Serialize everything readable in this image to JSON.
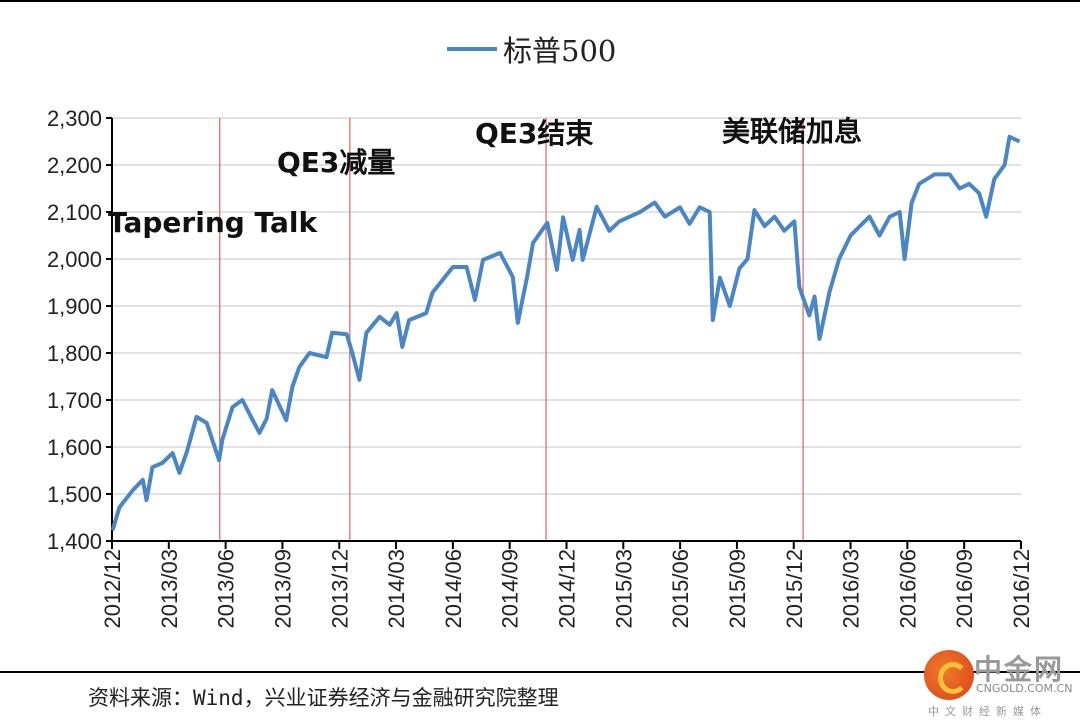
{
  "chart_data": {
    "type": "line",
    "title": "",
    "xlabel": "",
    "ylabel": "",
    "ylim": [
      1400,
      2300
    ],
    "yticks": [
      "1,400",
      "1,500",
      "1,600",
      "1,700",
      "1,800",
      "1,900",
      "2,000",
      "2,100",
      "2,200",
      "2,300"
    ],
    "ytick_values": [
      1400,
      1500,
      1600,
      1700,
      1800,
      1900,
      2000,
      2100,
      2200,
      2300
    ],
    "xlim": [
      "2012-12-01",
      "2016-12-01"
    ],
    "xticks": [
      "2012/12",
      "2013/03",
      "2013/06",
      "2013/09",
      "2013/12",
      "2014/03",
      "2014/06",
      "2014/09",
      "2014/12",
      "2015/03",
      "2015/06",
      "2015/09",
      "2015/12",
      "2016/03",
      "2016/06",
      "2016/09",
      "2016/12"
    ],
    "grid": true,
    "legend_position": "top-center",
    "series": [
      {
        "name": "标普500",
        "color": "#4a86c5",
        "points": [
          [
            "2012-12-02",
            1423
          ],
          [
            "2012-12-13",
            1472
          ],
          [
            "2013-01-04",
            1508
          ],
          [
            "2013-01-20",
            1530
          ],
          [
            "2013-01-26",
            1487
          ],
          [
            "2013-02-05",
            1557
          ],
          [
            "2013-02-21",
            1566
          ],
          [
            "2013-03-07",
            1587
          ],
          [
            "2013-03-18",
            1545
          ],
          [
            "2013-03-30",
            1590
          ],
          [
            "2013-04-15",
            1664
          ],
          [
            "2013-05-01",
            1651
          ],
          [
            "2013-05-10",
            1615
          ],
          [
            "2013-05-21",
            1572
          ],
          [
            "2013-05-26",
            1615
          ],
          [
            "2013-06-12",
            1685
          ],
          [
            "2013-06-28",
            1700
          ],
          [
            "2013-07-14",
            1657
          ],
          [
            "2013-07-25",
            1630
          ],
          [
            "2013-08-06",
            1660
          ],
          [
            "2013-08-15",
            1721
          ],
          [
            "2013-09-07",
            1657
          ],
          [
            "2013-09-17",
            1728
          ],
          [
            "2013-09-28",
            1770
          ],
          [
            "2013-10-14",
            1800
          ],
          [
            "2013-11-11",
            1791
          ],
          [
            "2013-11-20",
            1843
          ],
          [
            "2013-12-13",
            1840
          ],
          [
            "2013-12-22",
            1800
          ],
          [
            "2014-01-03",
            1743
          ],
          [
            "2014-01-14",
            1843
          ],
          [
            "2014-02-05",
            1877
          ],
          [
            "2014-02-21",
            1860
          ],
          [
            "2014-03-02",
            1885
          ],
          [
            "2014-03-11",
            1813
          ],
          [
            "2014-03-22",
            1870
          ],
          [
            "2014-04-19",
            1885
          ],
          [
            "2014-04-29",
            1928
          ],
          [
            "2014-06-01",
            1983
          ],
          [
            "2014-06-23",
            1983
          ],
          [
            "2014-07-06",
            1913
          ],
          [
            "2014-07-19",
            1998
          ],
          [
            "2014-08-16",
            2013
          ],
          [
            "2014-09-06",
            1962
          ],
          [
            "2014-09-14",
            1864
          ],
          [
            "2014-09-29",
            1962
          ],
          [
            "2014-10-08",
            2034
          ],
          [
            "2014-10-31",
            2077
          ],
          [
            "2014-11-16",
            1977
          ],
          [
            "2014-11-26",
            2089
          ],
          [
            "2014-12-11",
            1998
          ],
          [
            "2014-12-22",
            2062
          ],
          [
            "2014-12-27",
            1998
          ],
          [
            "2015-01-19",
            2111
          ],
          [
            "2015-02-09",
            2060
          ],
          [
            "2015-02-25",
            2080
          ],
          [
            "2015-03-28",
            2100
          ],
          [
            "2015-04-21",
            2120
          ],
          [
            "2015-05-07",
            2090
          ],
          [
            "2015-05-31",
            2110
          ],
          [
            "2015-06-16",
            2075
          ],
          [
            "2015-07-02",
            2110
          ],
          [
            "2015-07-18",
            2100
          ],
          [
            "2015-07-23",
            1870
          ],
          [
            "2015-08-04",
            1960
          ],
          [
            "2015-08-20",
            1900
          ],
          [
            "2015-09-05",
            1980
          ],
          [
            "2015-09-18",
            2000
          ],
          [
            "2015-09-29",
            2104
          ],
          [
            "2015-10-15",
            2070
          ],
          [
            "2015-10-31",
            2090
          ],
          [
            "2015-11-16",
            2060
          ],
          [
            "2015-12-02",
            2080
          ],
          [
            "2015-12-10",
            1940
          ],
          [
            "2015-12-26",
            1880
          ],
          [
            "2016-01-04",
            1920
          ],
          [
            "2016-01-12",
            1830
          ],
          [
            "2016-01-28",
            1930
          ],
          [
            "2016-02-13",
            2000
          ],
          [
            "2016-03-01",
            2050
          ],
          [
            "2016-03-16",
            2070
          ],
          [
            "2016-04-01",
            2090
          ],
          [
            "2016-04-17",
            2050
          ],
          [
            "2016-05-03",
            2090
          ],
          [
            "2016-05-19",
            2100
          ],
          [
            "2016-05-27",
            2000
          ],
          [
            "2016-06-08",
            2120
          ],
          [
            "2016-06-20",
            2160
          ],
          [
            "2016-07-14",
            2180
          ],
          [
            "2016-08-08",
            2180
          ],
          [
            "2016-08-24",
            2150
          ],
          [
            "2016-09-09",
            2160
          ],
          [
            "2016-09-25",
            2140
          ],
          [
            "2016-10-06",
            2090
          ],
          [
            "2016-10-19",
            2170
          ],
          [
            "2016-11-05",
            2200
          ],
          [
            "2016-11-13",
            2260
          ],
          [
            "2016-11-29",
            2250
          ]
        ]
      }
    ],
    "annotations": [
      {
        "text": "Tapering Talk",
        "date": "2013-05-22",
        "color": "#e06060"
      },
      {
        "text": "QE3减量",
        "date": "2013-12-18",
        "color": "#e06060"
      },
      {
        "text": "QE3结束",
        "date": "2014-10-29",
        "color": "#e06060"
      },
      {
        "text": "美联储加息",
        "date": "2015-12-16",
        "color": "#e06060"
      }
    ]
  },
  "legend": {
    "label": "标普500"
  },
  "source": "资料来源：Wind，兴业证券经济与金融研究院整理",
  "watermark": {
    "name": "中金网",
    "domain": "CNGOLD.COM.CN",
    "tagline": "中文财经新媒体"
  }
}
